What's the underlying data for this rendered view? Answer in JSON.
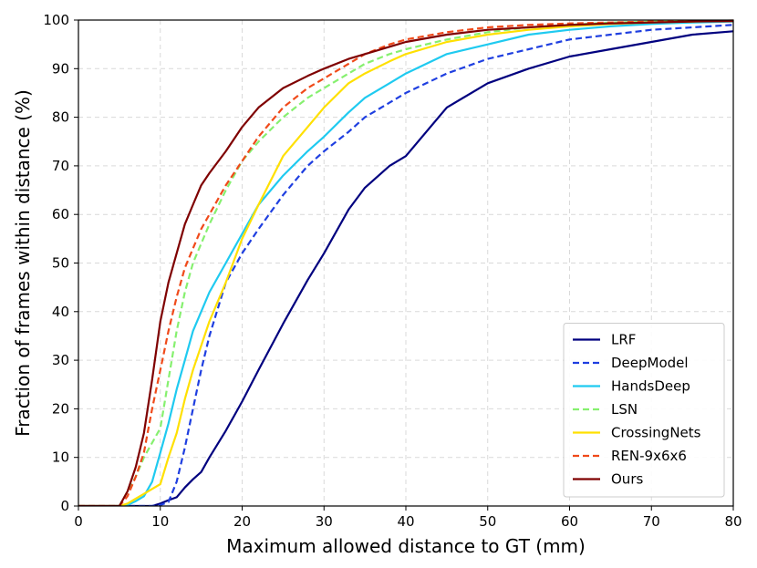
{
  "chart_data": {
    "type": "line",
    "title": "",
    "xlabel": "Maximum allowed distance to GT (mm)",
    "ylabel": "Fraction of frames within distance (%)",
    "xlim": [
      0,
      80
    ],
    "ylim": [
      0,
      100
    ],
    "xticks": [
      0,
      10,
      20,
      30,
      40,
      50,
      60,
      70,
      80
    ],
    "yticks": [
      0,
      10,
      20,
      30,
      40,
      50,
      60,
      70,
      80,
      90,
      100
    ],
    "grid": true,
    "legend_position": "lower-right",
    "x": [
      0,
      5,
      6,
      7,
      8,
      9,
      10,
      11,
      12,
      13,
      14,
      15,
      16,
      18,
      20,
      22,
      25,
      28,
      30,
      33,
      35,
      38,
      40,
      45,
      50,
      55,
      60,
      65,
      70,
      75,
      80
    ],
    "series": [
      {
        "name": "LRF",
        "color": "#00007f",
        "dash": "solid",
        "values": [
          0,
          0,
          0,
          0,
          0,
          0,
          0.5,
          1.2,
          1.8,
          3.8,
          5.5,
          7,
          10,
          15.5,
          21.5,
          28,
          37.5,
          46.5,
          52,
          61,
          65.5,
          70,
          72,
          82,
          87,
          90,
          92.5,
          94,
          95.5,
          97,
          97.7
        ]
      },
      {
        "name": "DeepModel",
        "color": "#1f3fe0",
        "dash": "dashed",
        "values": [
          0,
          0,
          0,
          0,
          0,
          0,
          0.2,
          0.8,
          5,
          12,
          20,
          28,
          35,
          46,
          52,
          57,
          64,
          70,
          73,
          77,
          80,
          83,
          85,
          89,
          92,
          94,
          96,
          97,
          98,
          98.5,
          99
        ]
      },
      {
        "name": "HandsDeep",
        "color": "#1fcaf0",
        "dash": "solid",
        "values": [
          0,
          0,
          0.2,
          1,
          2,
          5,
          11,
          17,
          24,
          30,
          36,
          40,
          44,
          50,
          56,
          62,
          68,
          73,
          76,
          81,
          84,
          87,
          89,
          93,
          95,
          97,
          98,
          98.7,
          99.2,
          99.5,
          99.7
        ]
      },
      {
        "name": "LSN",
        "color": "#86f06f",
        "dash": "dashed",
        "values": [
          0,
          0,
          3,
          6,
          10,
          13,
          16,
          26,
          36,
          44,
          50,
          54,
          58,
          65,
          71,
          75,
          80,
          84,
          86,
          89,
          91,
          93,
          94,
          96,
          97.5,
          98.5,
          99,
          99.5,
          99.7,
          99.8,
          99.9
        ]
      },
      {
        "name": "CrossingNets",
        "color": "#ffe000",
        "dash": "solid",
        "values": [
          0,
          0,
          0.5,
          1.5,
          2.5,
          3.5,
          4.5,
          10,
          15,
          22,
          28,
          33,
          38,
          46,
          55,
          62,
          72,
          78,
          82,
          87,
          89,
          91.5,
          93,
          95.5,
          97,
          98,
          98.7,
          99.2,
          99.5,
          99.7,
          99.8
        ]
      },
      {
        "name": "REN-9x6x6",
        "color": "#f04a1a",
        "dash": "dashed",
        "values": [
          0,
          0,
          2,
          6,
          11,
          20,
          28,
          36,
          43,
          49,
          53,
          57,
          60,
          66,
          71,
          76,
          82,
          86,
          88,
          91,
          93,
          95,
          96,
          97.5,
          98.5,
          99,
          99.3,
          99.5,
          99.7,
          99.8,
          99.9
        ]
      },
      {
        "name": "Ours",
        "color": "#7f0000",
        "dash": "solid",
        "values": [
          0,
          0,
          3,
          8,
          15,
          26,
          38,
          46,
          52,
          58,
          62,
          66,
          68.5,
          73,
          78,
          82,
          86,
          88.5,
          90,
          92,
          93,
          94.5,
          95.5,
          97,
          98,
          98.5,
          99,
          99.3,
          99.5,
          99.7,
          99.8
        ]
      }
    ]
  }
}
